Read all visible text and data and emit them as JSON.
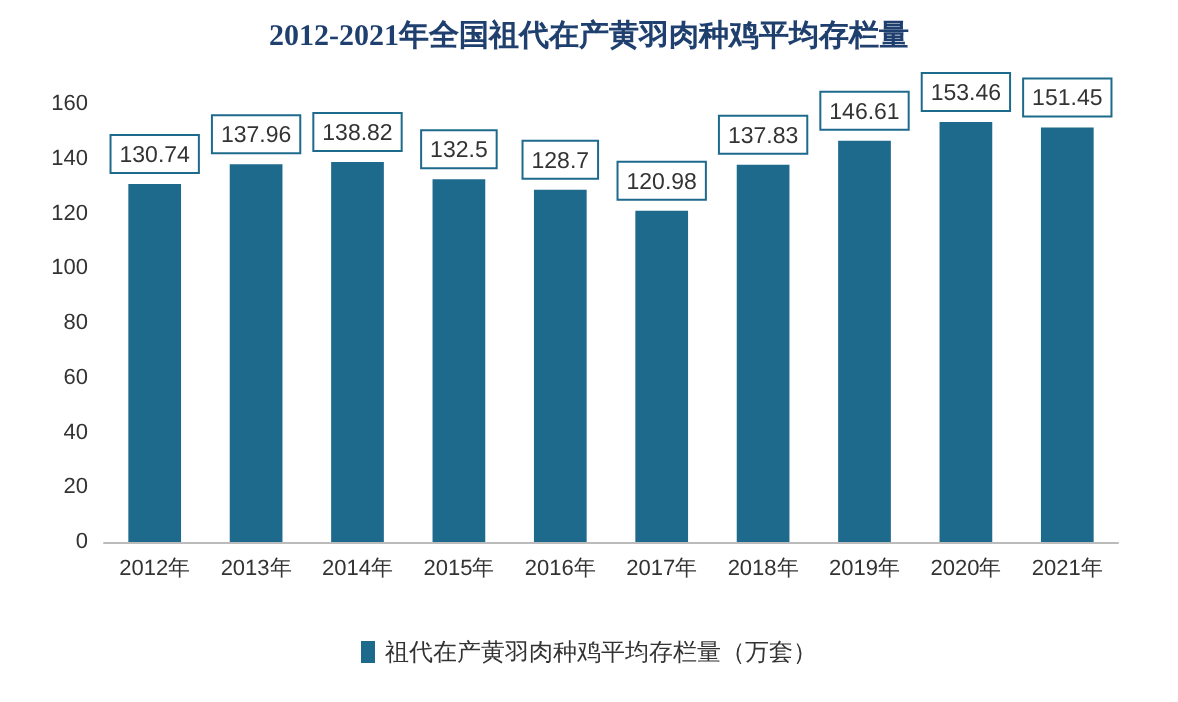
{
  "chart_data": {
    "type": "bar",
    "title": "2012-2021年全国祖代在产黄羽肉种鸡平均存栏量",
    "categories": [
      "2012年",
      "2013年",
      "2014年",
      "2015年",
      "2016年",
      "2017年",
      "2018年",
      "2019年",
      "2020年",
      "2021年"
    ],
    "series": [
      {
        "name": "祖代在产黄羽肉种鸡平均存栏量（万套）",
        "color": "#1d6a8c",
        "values": [
          130.74,
          137.96,
          138.82,
          132.5,
          128.7,
          120.98,
          137.83,
          146.61,
          153.46,
          151.45
        ]
      }
    ],
    "ylim": [
      0,
      160
    ],
    "yticks": [
      0,
      20,
      40,
      60,
      80,
      100,
      120,
      140,
      160
    ],
    "grid": false,
    "legend": "bottom",
    "data_labels": true
  }
}
